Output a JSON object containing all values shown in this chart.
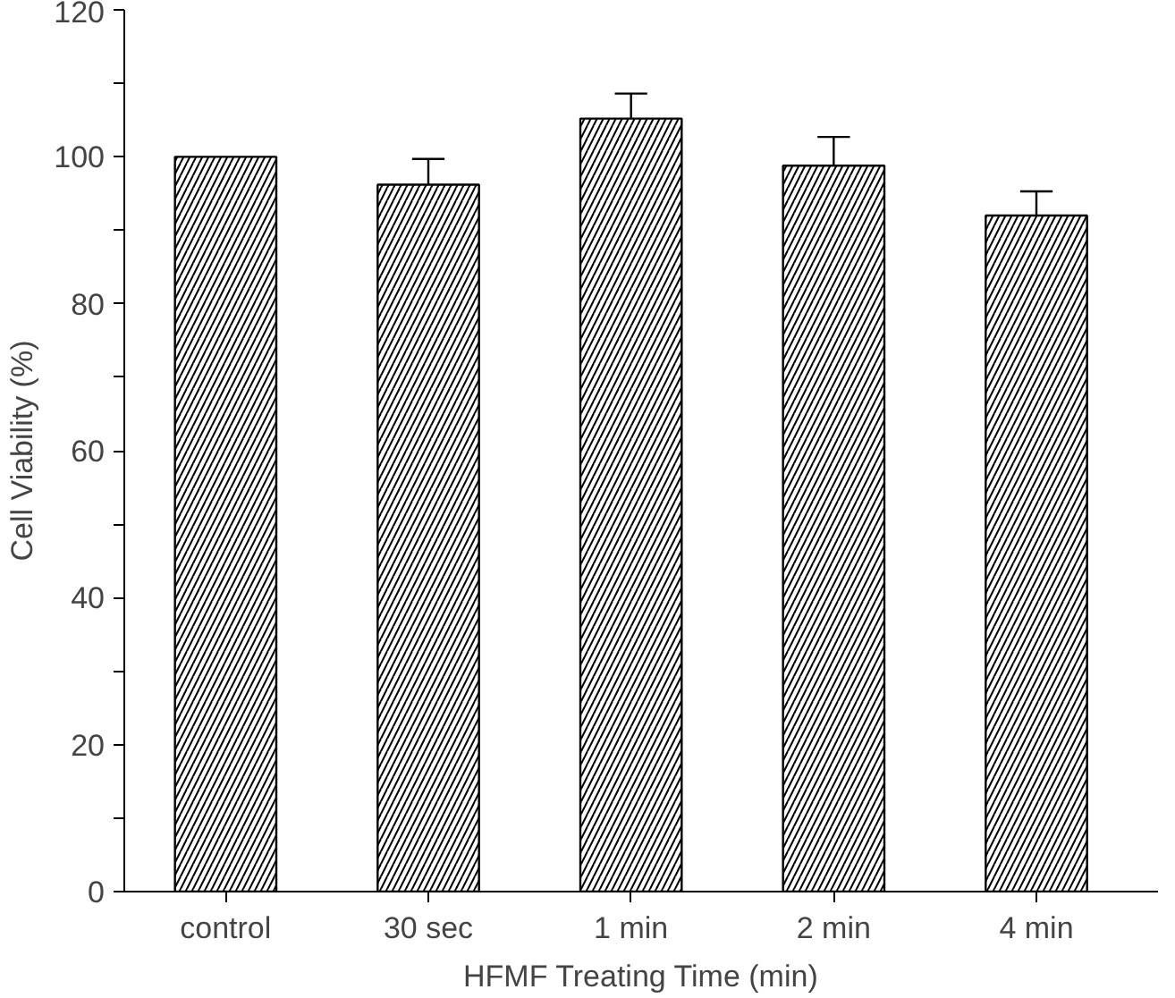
{
  "chart_data": {
    "type": "bar",
    "xlabel": "HFMF Treating Time (min)",
    "ylabel": "Cell Viability (%)",
    "categories": [
      "control",
      "30 sec",
      "1 min",
      "2 min",
      "4 min"
    ],
    "values": [
      100,
      96.2,
      105.2,
      98.8,
      92.0
    ],
    "errors": [
      null,
      [
        96.2,
        99.7
      ],
      [
        105.2,
        108.6
      ],
      [
        98.8,
        102.7
      ],
      [
        92.0,
        95.3
      ]
    ],
    "color": "#ffffff",
    "ylim": [
      0,
      120
    ],
    "yticks": [
      0,
      {
        "value": 10,
        "label": null
      },
      20,
      {
        "value": 30,
        "label": null
      },
      40,
      {
        "value": 50,
        "label": null
      },
      60,
      {
        "value": 70,
        "label": null
      },
      80,
      {
        "value": 90,
        "label": null
      },
      100,
      {
        "value": 110,
        "label": null
      },
      120
    ],
    "grid": false
  }
}
